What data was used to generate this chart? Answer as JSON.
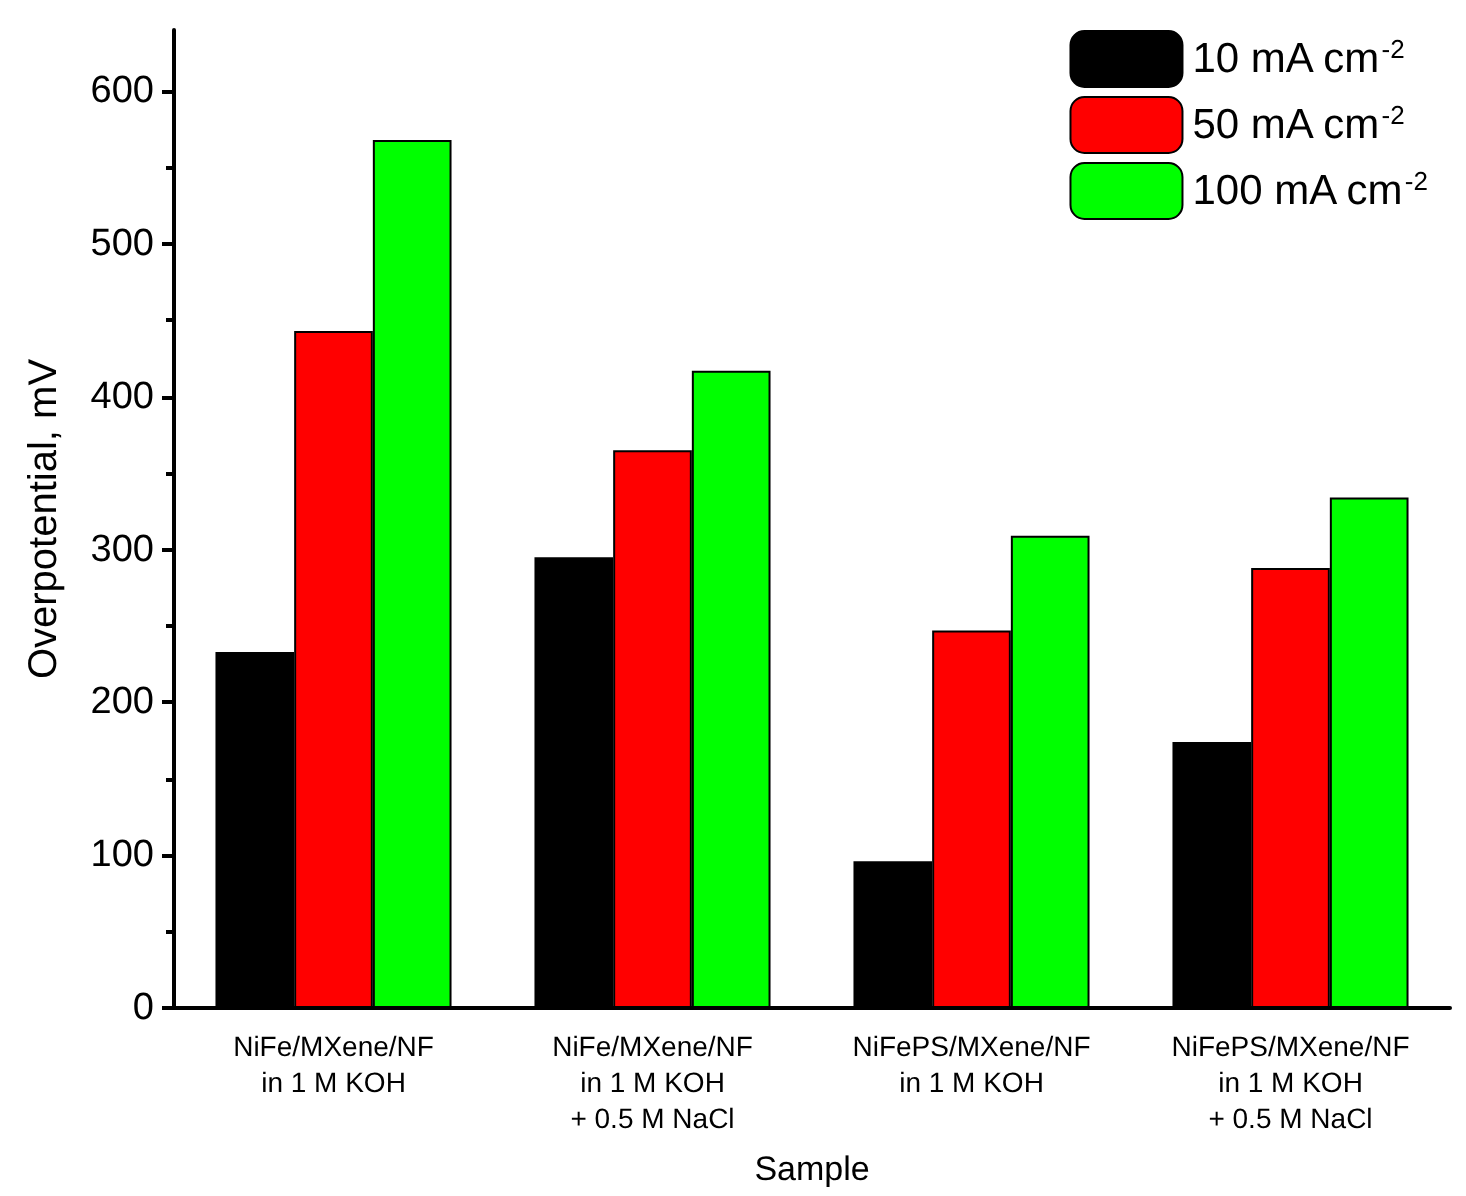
{
  "chart_data": {
    "type": "bar",
    "xlabel": "Sample",
    "ylabel": "Overpotential, mV",
    "categories": [
      "NiFe/MXene/NF\nin 1 M KOH",
      "NiFe/MXene/NF\nin 1 M KOH\n+ 0.5 M NaCl",
      "NiFePS/MXene/NF\nin 1 M KOH",
      "NiFePS/MXene/NF\nin 1 M KOH\n+ 0.5 M NaCl"
    ],
    "series": [
      {
        "name": "10 mA cm$^{-2}$",
        "color": "#000000",
        "values": [
          233,
          295,
          96,
          174
        ]
      },
      {
        "name": "50 mA cm$^{-2}$",
        "color": "#ff0000",
        "values": [
          443,
          365,
          247,
          288
        ]
      },
      {
        "name": "100 mA cm$^{-2}$",
        "color": "#00ff00",
        "values": [
          568,
          417,
          309,
          334
        ]
      }
    ],
    "ylim": [
      0,
      640
    ],
    "yticks": [
      0,
      100,
      200,
      300,
      400,
      500,
      600
    ],
    "grid": false,
    "legend": "top right"
  }
}
